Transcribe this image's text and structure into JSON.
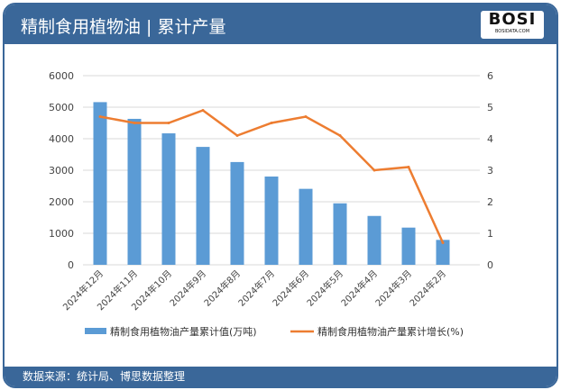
{
  "header": {
    "title": "精制食用植物油 | 累计产量",
    "logo_text": "BOSI",
    "logo_sub": "BOSIDATA.COM"
  },
  "footer": {
    "source": "数据来源：统计局、博思数据整理"
  },
  "colors": {
    "bar": "#5b9bd5",
    "line": "#ed7d31",
    "header": "#3a6799"
  },
  "chart_data": {
    "type": "bar+line",
    "categories": [
      "2024年12月",
      "2024年11月",
      "2024年10月",
      "2024年9月",
      "2024年8月",
      "2024年7月",
      "2024年6月",
      "2024年5月",
      "2024年4月",
      "2024年3月",
      "2024年2月"
    ],
    "series": [
      {
        "name": "精制食用植物油产量累计值(万吨)",
        "type": "bar",
        "axis": "left",
        "values": [
          5160,
          4630,
          4170,
          3740,
          3260,
          2800,
          2410,
          1950,
          1550,
          1180,
          790
        ]
      },
      {
        "name": "精制食用植物油产量累计增长(%)",
        "type": "line",
        "axis": "right",
        "values": [
          4.7,
          4.5,
          4.5,
          4.9,
          4.1,
          4.5,
          4.7,
          4.1,
          3.0,
          3.1,
          0.7
        ]
      }
    ],
    "ylim_left": [
      0,
      6000
    ],
    "yticks_left": [
      0,
      1000,
      2000,
      3000,
      4000,
      5000,
      6000
    ],
    "ylim_right": [
      0,
      6
    ],
    "yticks_right": [
      0,
      1,
      2,
      3,
      4,
      5,
      6
    ],
    "grid": true,
    "legend": "bottom"
  }
}
